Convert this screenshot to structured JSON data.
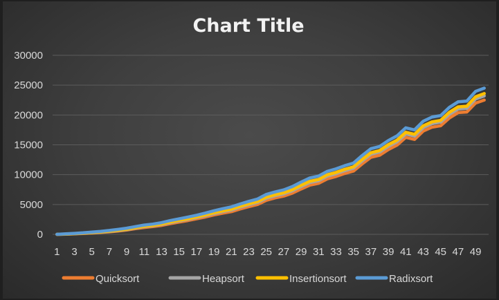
{
  "chart_data": {
    "type": "line",
    "title": "Chart Title",
    "xlabel": "",
    "ylabel": "",
    "ylim": [
      0,
      30000
    ],
    "y_ticks": [
      "0",
      "5000",
      "10000",
      "15000",
      "20000",
      "25000",
      "30000"
    ],
    "x_ticks": [
      "1",
      "3",
      "5",
      "7",
      "9",
      "11",
      "13",
      "15",
      "17",
      "19",
      "21",
      "23",
      "25",
      "27",
      "29",
      "31",
      "33",
      "35",
      "37",
      "39",
      "41",
      "43",
      "45",
      "47",
      "49"
    ],
    "grid": true,
    "legend_position": "bottom",
    "categories": [
      1,
      2,
      3,
      4,
      5,
      6,
      7,
      8,
      9,
      10,
      11,
      12,
      13,
      14,
      15,
      16,
      17,
      18,
      19,
      20,
      21,
      22,
      23,
      24,
      25,
      26,
      27,
      28,
      29,
      30,
      31,
      32,
      33,
      34,
      35,
      36,
      37,
      38,
      39,
      40,
      41,
      42,
      43,
      44,
      45,
      46,
      47,
      48,
      49,
      50
    ],
    "series": [
      {
        "name": "Quicksort",
        "color": "#ED7D31",
        "values": [
          0,
          30,
          80,
          150,
          220,
          320,
          420,
          560,
          720,
          950,
          1150,
          1300,
          1500,
          1800,
          2050,
          2300,
          2600,
          2900,
          3250,
          3550,
          3800,
          4250,
          4650,
          5000,
          5700,
          6100,
          6400,
          6900,
          7600,
          8250,
          8550,
          9300,
          9700,
          10200,
          10600,
          11800,
          12900,
          13250,
          14200,
          14950,
          16250,
          15900,
          17300,
          17950,
          18200,
          19500,
          20400,
          20500,
          22000,
          22500
        ]
      },
      {
        "name": "Heapsort",
        "color": "#A5A5A5",
        "values": [
          0,
          40,
          100,
          180,
          260,
          360,
          480,
          630,
          800,
          1050,
          1280,
          1430,
          1650,
          1960,
          2240,
          2500,
          2800,
          3120,
          3480,
          3800,
          4080,
          4550,
          4960,
          5330,
          6050,
          6460,
          6780,
          7300,
          8020,
          8680,
          8980,
          9750,
          10150,
          10670,
          11080,
          12300,
          13420,
          13780,
          14750,
          15510,
          16820,
          16470,
          17880,
          18540,
          18800,
          20100,
          21000,
          21120,
          22680,
          23200
        ]
      },
      {
        "name": "Insertionsort",
        "color": "#FFC000",
        "values": [
          0,
          50,
          120,
          200,
          300,
          400,
          530,
          690,
          870,
          1120,
          1360,
          1510,
          1740,
          2060,
          2350,
          2610,
          2920,
          3250,
          3620,
          3940,
          4230,
          4700,
          5120,
          5500,
          6230,
          6640,
          6970,
          7500,
          8230,
          8900,
          9200,
          9980,
          10380,
          10900,
          11320,
          12550,
          13680,
          14040,
          15020,
          15790,
          17110,
          16760,
          18180,
          18850,
          19100,
          20450,
          21360,
          21480,
          23050,
          23600
        ]
      },
      {
        "name": "Radixsort",
        "color": "#5B9BD5",
        "values": [
          0,
          80,
          160,
          260,
          380,
          500,
          650,
          830,
          1030,
          1300,
          1550,
          1720,
          1960,
          2300,
          2600,
          2880,
          3200,
          3560,
          3950,
          4300,
          4600,
          5080,
          5520,
          5920,
          6680,
          7100,
          7450,
          8000,
          8760,
          9450,
          9760,
          10550,
          10970,
          11500,
          11940,
          13200,
          14350,
          14720,
          15720,
          16500,
          17850,
          17500,
          18950,
          19640,
          19900,
          21280,
          22200,
          22330,
          23950,
          24500
        ]
      }
    ]
  }
}
